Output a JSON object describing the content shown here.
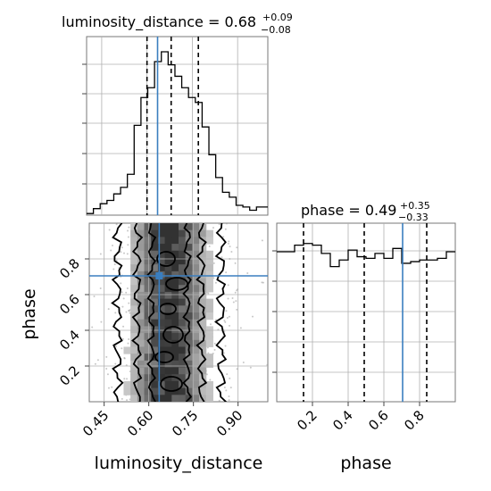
{
  "chart_data": [
    {
      "type": "histogram",
      "panel": "luminosity_distance marginal",
      "title": {
        "prefix": "luminosity_distance = ",
        "value": "0.68",
        "plus": "+0.09",
        "minus": "−0.08"
      },
      "xlim": [
        0.4,
        1.0
      ],
      "grid": true,
      "quantiles": [
        0.6,
        0.68,
        0.77
      ],
      "truth": 0.635,
      "bin_edges": [
        0.4,
        0.4225,
        0.445,
        0.4675,
        0.49,
        0.5125,
        0.535,
        0.5575,
        0.58,
        0.6025,
        0.625,
        0.6475,
        0.67,
        0.6925,
        0.715,
        0.7375,
        0.76,
        0.7825,
        0.805,
        0.8275,
        0.85,
        0.8725,
        0.895,
        0.9175,
        0.94,
        0.9625,
        0.985,
        1.0
      ],
      "counts": [
        1,
        4,
        7,
        9,
        13,
        17,
        25,
        55,
        72,
        78,
        94,
        100,
        92,
        85,
        78,
        72,
        69,
        54,
        37,
        23,
        14,
        11,
        6,
        5,
        3,
        5,
        5
      ]
    },
    {
      "type": "histogram",
      "panel": "phase marginal",
      "title": {
        "prefix": "phase = ",
        "value": "0.49",
        "plus": "+0.35",
        "minus": "−0.33"
      },
      "xlim": [
        0.0,
        1.0
      ],
      "xticks": [
        "0.2",
        "0.4",
        "0.6",
        "0.8"
      ],
      "xlabel": "phase",
      "grid": true,
      "quantiles": [
        0.15,
        0.49,
        0.84
      ],
      "truth": 0.705,
      "bin_edges": [
        0.0,
        0.05,
        0.1,
        0.15,
        0.2,
        0.25,
        0.3,
        0.35,
        0.4,
        0.45,
        0.5,
        0.55,
        0.6,
        0.65,
        0.7,
        0.75,
        0.8,
        0.85,
        0.9,
        0.95,
        1.0
      ],
      "counts": [
        91,
        91,
        95,
        96,
        95,
        90,
        82,
        86,
        92,
        88,
        87,
        90,
        87,
        93,
        84,
        85,
        86,
        86,
        87,
        91
      ]
    },
    {
      "type": "heatmap",
      "panel": "luminosity_distance vs phase 2D density",
      "xlim": [
        0.4,
        1.0
      ],
      "ylim": [
        0.0,
        1.0
      ],
      "xticks": [
        "0.45",
        "0.60",
        "0.75",
        "0.90"
      ],
      "yticks": [
        "0.2",
        "0.4",
        "0.6",
        "0.8"
      ],
      "xlabel": "luminosity_distance",
      "ylabel": "phase",
      "grid": true,
      "truth": {
        "x": 0.635,
        "y": 0.705
      },
      "density_peak_x": 0.67,
      "density_sigma_x": 0.075
    }
  ],
  "colors": {
    "truth": "#3a7ebf",
    "lines": "#000000",
    "grid": "#b0b0b0"
  }
}
